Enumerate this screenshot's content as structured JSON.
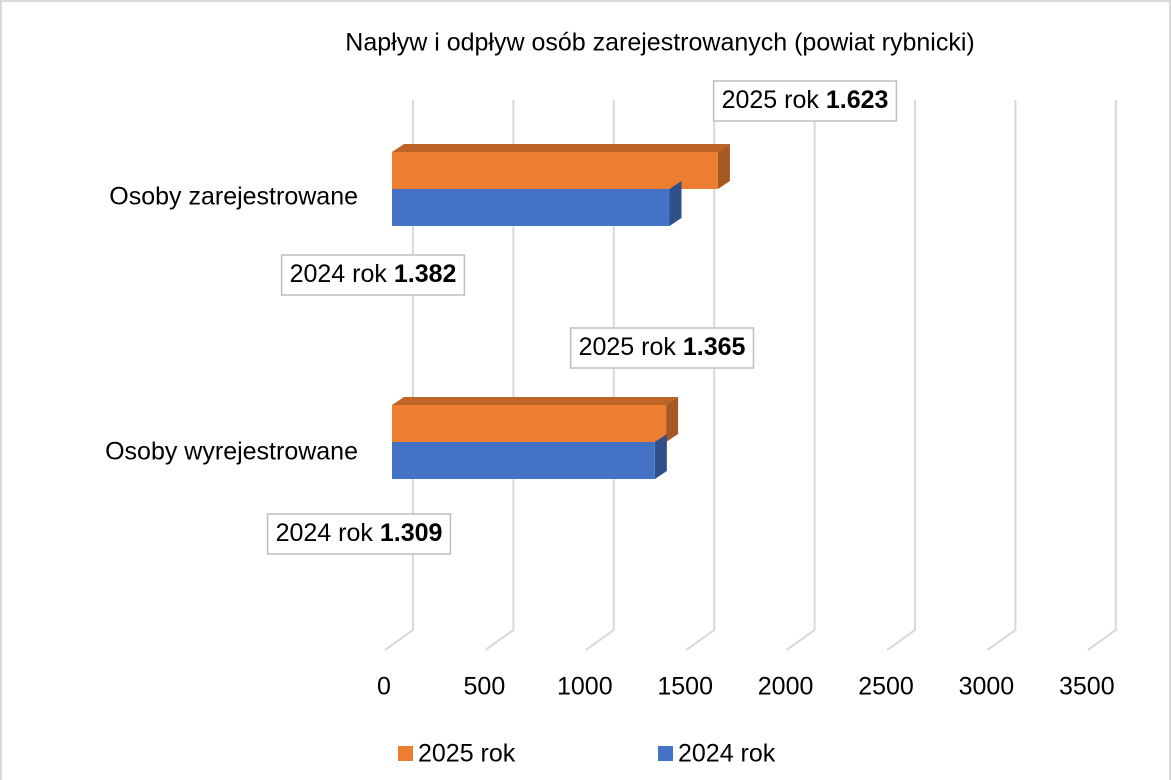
{
  "chart_data": {
    "type": "bar3d_horizontal",
    "title": "Napływ i odpływ osób zarejestrowanych  (powiat rybnicki)",
    "categories": [
      "Osoby zarejestrowane",
      "Osoby wyrejestrowane"
    ],
    "series": [
      {
        "name": "2025 rok",
        "color": "#ed7d31",
        "values": [
          1623,
          1365
        ],
        "value_labels": [
          "1.623",
          "1.365"
        ]
      },
      {
        "name": "2024 rok",
        "color": "#4472c4",
        "values": [
          1382,
          1309
        ],
        "value_labels": [
          "1.382",
          "1.309"
        ]
      }
    ],
    "xlim": [
      0,
      3500
    ],
    "xticks": [
      0,
      500,
      1000,
      1500,
      2000,
      2500,
      3000,
      3500
    ],
    "grid": true
  }
}
